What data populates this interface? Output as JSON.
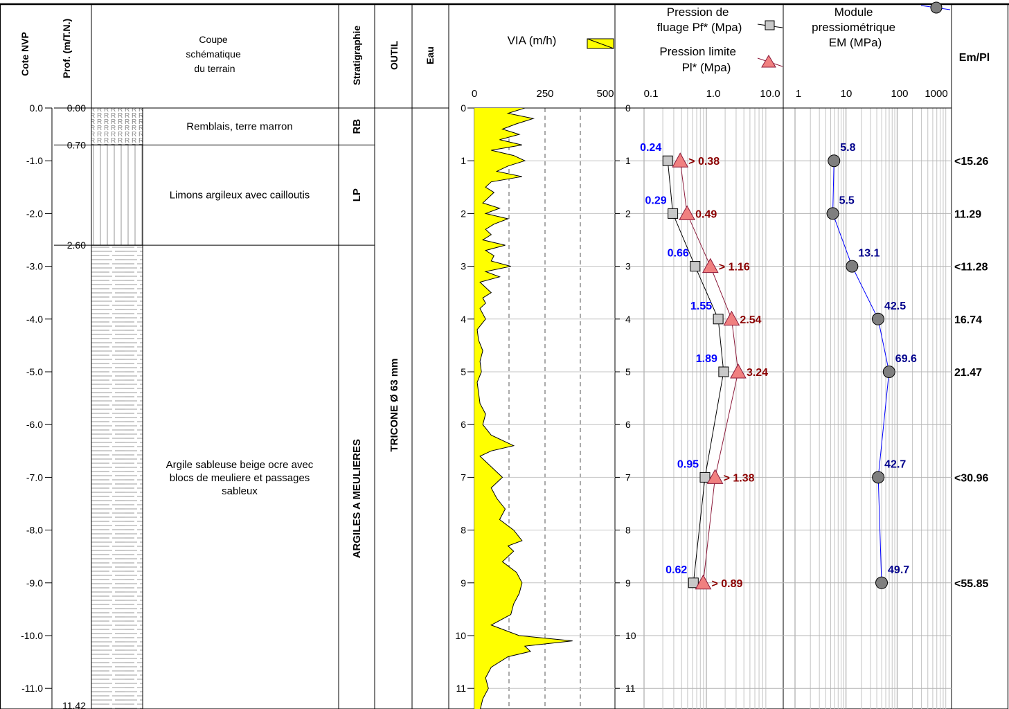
{
  "chart_data": {
    "type": "line",
    "title": "",
    "headers": {
      "cote": "Cote NVP",
      "prof": "Prof. (m/T.N.)",
      "coupe": [
        "Coupe",
        "schématique",
        "du terrain"
      ],
      "strat": "Stratigraphie",
      "outil": "OUTIL",
      "eau": "Eau",
      "via": "VIA (m/h)",
      "pf": [
        "Pression de",
        "fluage Pf* (Mpa)"
      ],
      "pl": [
        "Pression limite",
        "Pl* (Mpa)"
      ],
      "em": [
        "Module",
        "pressiométrique",
        "EM (MPa)"
      ],
      "ratio": "Em/Pl"
    },
    "depth_range": [
      0,
      11.42
    ],
    "cote_ticks": [
      "0.0",
      "-1.0",
      "-2.0",
      "-3.0",
      "-4.0",
      "-5.0",
      "-6.0",
      "-7.0",
      "-8.0",
      "-9.0",
      "-10.0",
      "-11.0"
    ],
    "depth_ticks": [
      "0",
      "1",
      "2",
      "3",
      "4",
      "5",
      "6",
      "7",
      "8",
      "9",
      "10",
      "11"
    ],
    "layers": [
      {
        "top": 0.0,
        "bottom": 0.7,
        "top_label": "0.00",
        "description": [
          "Remblais, terre marron"
        ],
        "code": "RB",
        "pattern": "remblai"
      },
      {
        "top": 0.7,
        "bottom": 2.6,
        "top_label": "0.70",
        "description": [
          "Limons argileux avec cailloutis"
        ],
        "code": "LP",
        "pattern": "limon"
      },
      {
        "top": 2.6,
        "bottom": 11.42,
        "top_label": "2.60",
        "description": [
          "Argile sableuse beige ocre avec",
          "blocs de meuliere et passages",
          "sableux"
        ],
        "code": "ARGILES A MEULIERES",
        "pattern": "argile"
      }
    ],
    "bottom_label": "11.42",
    "tool": "TRICONE Ø 63 mm",
    "via": {
      "xlim": [
        0,
        500
      ],
      "x_ticks": [
        "0",
        "250",
        "500"
      ],
      "depth": [
        0.0,
        0.1,
        0.2,
        0.3,
        0.4,
        0.5,
        0.6,
        0.7,
        0.8,
        0.9,
        1.0,
        1.1,
        1.2,
        1.3,
        1.4,
        1.5,
        1.6,
        1.7,
        1.8,
        1.9,
        2.0,
        2.1,
        2.2,
        2.3,
        2.4,
        2.5,
        2.6,
        2.7,
        2.8,
        2.9,
        3.0,
        3.1,
        3.2,
        3.3,
        3.4,
        3.5,
        3.6,
        3.7,
        3.8,
        3.9,
        4.0,
        4.2,
        4.4,
        4.6,
        4.8,
        5.0,
        5.2,
        5.4,
        5.6,
        5.8,
        6.0,
        6.2,
        6.4,
        6.5,
        6.6,
        6.8,
        7.0,
        7.2,
        7.4,
        7.6,
        7.8,
        8.0,
        8.2,
        8.3,
        8.4,
        8.6,
        8.8,
        9.0,
        9.2,
        9.4,
        9.6,
        9.8,
        10.0,
        10.1,
        10.2,
        10.3,
        10.4,
        10.6,
        10.8,
        11.0,
        11.2,
        11.42
      ],
      "values": [
        180,
        120,
        210,
        150,
        100,
        160,
        90,
        170,
        60,
        140,
        180,
        120,
        80,
        170,
        60,
        40,
        70,
        50,
        30,
        90,
        40,
        120,
        70,
        40,
        60,
        30,
        110,
        40,
        70,
        60,
        130,
        40,
        90,
        20,
        40,
        60,
        30,
        40,
        20,
        30,
        40,
        10,
        15,
        30,
        20,
        25,
        10,
        15,
        20,
        40,
        30,
        60,
        140,
        60,
        20,
        60,
        100,
        60,
        80,
        110,
        90,
        140,
        170,
        120,
        140,
        100,
        150,
        170,
        160,
        140,
        130,
        60,
        160,
        350,
        180,
        200,
        120,
        60,
        40,
        50,
        30,
        20
      ]
    },
    "series": [
      {
        "name": "Pf*",
        "depth": [
          1,
          2,
          3,
          4,
          5,
          7,
          9
        ],
        "values": [
          0.24,
          0.29,
          0.66,
          1.55,
          1.89,
          0.95,
          0.62
        ],
        "labels": [
          "0.24",
          "0.29",
          "0.66",
          "1.55",
          "1.89",
          "0.95",
          "0.62"
        ],
        "color": "#000000",
        "marker_color": "#c8c8c8",
        "label_color": "#0000ff"
      },
      {
        "name": "Pl*",
        "depth": [
          1,
          2,
          3,
          4,
          5,
          7,
          9
        ],
        "values": [
          0.38,
          0.49,
          1.16,
          2.54,
          3.24,
          1.38,
          0.89
        ],
        "labels": [
          "> 0.38",
          "0.49",
          "> 1.16",
          "2.54",
          "3.24",
          "> 1.38",
          "> 0.89"
        ],
        "color": "#8b1a3a",
        "marker_color": "#f08080",
        "label_color": "#8b0000"
      },
      {
        "name": "EM",
        "depth": [
          1,
          2,
          3,
          4,
          5,
          7,
          9
        ],
        "values": [
          5.8,
          5.5,
          13.1,
          42.5,
          69.6,
          42.7,
          49.7
        ],
        "labels": [
          "5.8",
          "5.5",
          "13.1",
          "42.5",
          "69.6",
          "42.7",
          "49.7"
        ],
        "color": "#0000ff",
        "marker_color": "#7f7f7f",
        "label_color": "#00008b"
      }
    ],
    "pressure_axis": {
      "scale": "log",
      "xlim": [
        0.1,
        10
      ],
      "ticks": [
        "0.1",
        "1.0",
        "10.0"
      ]
    },
    "module_axis": {
      "scale": "log",
      "xlim": [
        1,
        1000
      ],
      "ticks": [
        "1",
        "10",
        "100",
        "1000"
      ]
    },
    "ratio": {
      "depth": [
        1,
        2,
        3,
        4,
        5,
        7,
        9
      ],
      "labels": [
        "<15.26",
        "11.29",
        "<11.28",
        "16.74",
        "21.47",
        "<30.96",
        "<55.85"
      ]
    },
    "colors": {
      "via_fill": "#ffff00",
      "grid": "#b4b4b4"
    }
  }
}
